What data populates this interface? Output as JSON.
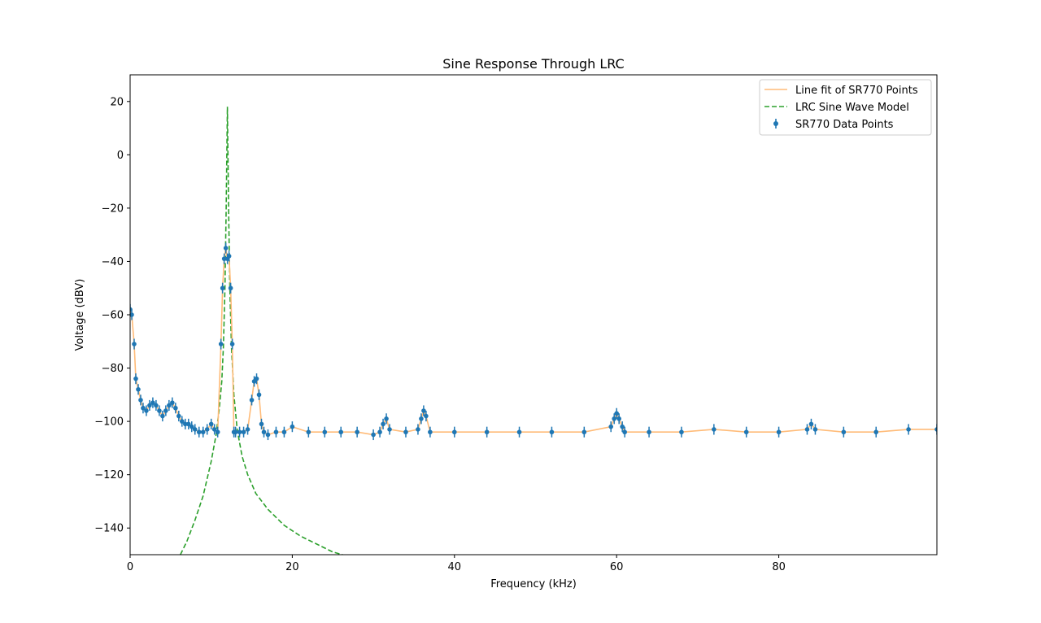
{
  "chart_data": {
    "type": "line",
    "title": "Sine Response Through LRC",
    "xlabel": "Frequency (kHz)",
    "ylabel": "Voltage (dBV)",
    "xlim": [
      0,
      99.5
    ],
    "ylim": [
      -150,
      30
    ],
    "x_ticks": [
      0,
      20,
      40,
      60,
      80
    ],
    "x_tick_labels": [
      "0",
      "20",
      "40",
      "60",
      "80"
    ],
    "y_ticks": [
      20,
      0,
      -20,
      -40,
      -60,
      -80,
      -100,
      -120,
      -140
    ],
    "y_tick_labels": [
      "20",
      "0",
      "−20",
      "−40",
      "−60",
      "−80",
      "−100",
      "−120",
      "−140"
    ],
    "grid": false,
    "legend": {
      "placement": "top-right",
      "entries": [
        "Line fit of SR770 Points",
        "LRC Sine Wave Model",
        "SR770 Data Points"
      ]
    },
    "colors": {
      "data_points": "#1f77b4",
      "line_fit": "#ffbb78",
      "model": "#2ca02c"
    },
    "series": [
      {
        "name": "SR770 Data Points",
        "style": "errorbar-points",
        "yerr": 2,
        "x": [
          0,
          0.2,
          0.5,
          0.7,
          1.0,
          1.3,
          1.6,
          2.0,
          2.4,
          2.8,
          3.2,
          3.6,
          4.0,
          4.4,
          4.8,
          5.2,
          5.6,
          6.0,
          6.4,
          6.8,
          7.2,
          7.6,
          8.0,
          8.5,
          9.0,
          9.5,
          10.0,
          10.4,
          10.8,
          11.2,
          11.4,
          11.6,
          11.8,
          12.0,
          12.2,
          12.4,
          12.6,
          12.8,
          13.0,
          13.5,
          14.0,
          14.5,
          15.0,
          15.3,
          15.6,
          15.9,
          16.2,
          16.5,
          17.0,
          18.0,
          19.0,
          20.0,
          22.0,
          24.0,
          26.0,
          28.0,
          30.0,
          30.8,
          31.2,
          31.6,
          32.0,
          34.0,
          35.5,
          35.9,
          36.2,
          36.5,
          37.0,
          40.0,
          44.0,
          48.0,
          52.0,
          56.0,
          59.3,
          59.7,
          60.0,
          60.3,
          60.7,
          61.0,
          64.0,
          68.0,
          72.0,
          76.0,
          80.0,
          83.5,
          84.0,
          84.5,
          88.0,
          92.0,
          96.0,
          99.5
        ],
        "y": [
          -58,
          -60,
          -71,
          -84,
          -88,
          -92,
          -95,
          -96,
          -94,
          -93,
          -94,
          -96,
          -98,
          -96,
          -94,
          -93,
          -95,
          -98,
          -100,
          -101,
          -101,
          -102,
          -103,
          -104,
          -104,
          -103,
          -101,
          -103,
          -104,
          -71,
          -50,
          -39,
          -35,
          -39,
          -38,
          -50,
          -71,
          -104,
          -104,
          -104,
          -104,
          -103,
          -92,
          -85,
          -84,
          -90,
          -101,
          -104,
          -105,
          -104,
          -104,
          -102,
          -104,
          -104,
          -104,
          -104,
          -105,
          -104,
          -101,
          -99,
          -103,
          -104,
          -103,
          -99,
          -96,
          -98,
          -104,
          -104,
          -104,
          -104,
          -104,
          -104,
          -102,
          -99,
          -97,
          -99,
          -102,
          -104,
          -104,
          -104,
          -103,
          -104,
          -104,
          -103,
          -101,
          -103,
          -104,
          -104,
          -103,
          -103
        ]
      },
      {
        "name": "Line fit of SR770 Points",
        "style": "line",
        "x": [
          0,
          0.2,
          0.5,
          0.7,
          1.0,
          1.3,
          1.6,
          2.0,
          2.4,
          2.8,
          3.2,
          3.6,
          4.0,
          4.4,
          4.8,
          5.2,
          5.6,
          6.0,
          6.4,
          6.8,
          7.2,
          7.6,
          8.0,
          8.5,
          9.0,
          9.5,
          10.0,
          10.4,
          10.8,
          11.2,
          11.4,
          11.6,
          11.8,
          12.0,
          12.2,
          12.4,
          12.6,
          12.8,
          13.0,
          13.5,
          14.0,
          14.5,
          15.0,
          15.3,
          15.6,
          15.9,
          16.2,
          16.5,
          17.0,
          18.0,
          19.0,
          20.0,
          22.0,
          24.0,
          26.0,
          28.0,
          30.0,
          30.8,
          31.2,
          31.6,
          32.0,
          34.0,
          35.5,
          35.9,
          36.2,
          36.5,
          37.0,
          40.0,
          44.0,
          48.0,
          52.0,
          56.0,
          59.3,
          59.7,
          60.0,
          60.3,
          60.7,
          61.0,
          64.0,
          68.0,
          72.0,
          76.0,
          80.0,
          83.5,
          84.0,
          84.5,
          88.0,
          92.0,
          96.0,
          99.5
        ],
        "y": [
          -58,
          -60,
          -71,
          -84,
          -88,
          -92,
          -95,
          -96,
          -94,
          -93,
          -94,
          -96,
          -98,
          -96,
          -94,
          -93,
          -95,
          -98,
          -100,
          -101,
          -101,
          -102,
          -103,
          -104,
          -104,
          -103,
          -101,
          -103,
          -104,
          -71,
          -50,
          -39,
          -35,
          -39,
          -38,
          -50,
          -71,
          -104,
          -104,
          -104,
          -104,
          -103,
          -92,
          -85,
          -84,
          -90,
          -101,
          -104,
          -105,
          -104,
          -104,
          -102,
          -104,
          -104,
          -104,
          -104,
          -105,
          -104,
          -101,
          -99,
          -103,
          -104,
          -103,
          -99,
          -96,
          -98,
          -104,
          -104,
          -104,
          -104,
          -104,
          -104,
          -102,
          -99,
          -97,
          -99,
          -102,
          -104,
          -104,
          -104,
          -103,
          -104,
          -104,
          -103,
          -101,
          -103,
          -104,
          -104,
          -103,
          -103
        ]
      },
      {
        "name": "LRC Sine Wave Model",
        "style": "dashed-line",
        "x": [
          6.2,
          7.0,
          8.0,
          9.0,
          10.0,
          10.6,
          11.0,
          11.3,
          11.5,
          11.7,
          11.85,
          11.95,
          12.0,
          12.05,
          12.15,
          12.3,
          12.5,
          12.8,
          13.2,
          13.8,
          14.5,
          15.5,
          17.0,
          19.0,
          21.0,
          23.0,
          25.0,
          26.2
        ],
        "y": [
          -150,
          -145,
          -137,
          -128,
          -115,
          -105,
          -95,
          -85,
          -72,
          -50,
          -20,
          5,
          18,
          5,
          -20,
          -50,
          -72,
          -90,
          -103,
          -113,
          -120,
          -127,
          -133,
          -139,
          -143,
          -146,
          -149,
          -150
        ]
      }
    ]
  }
}
